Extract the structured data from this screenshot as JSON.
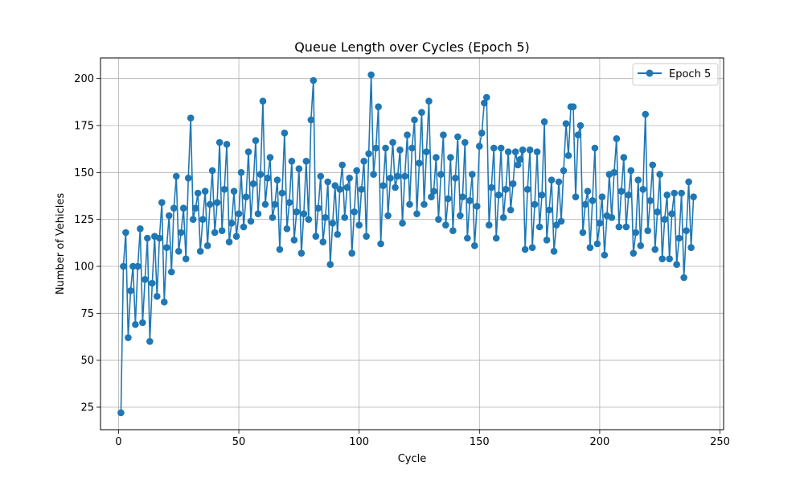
{
  "chart_data": {
    "type": "line",
    "title": "Queue Length over Cycles (Epoch 5)",
    "xlabel": "Cycle",
    "ylabel": "Number of Vehicles",
    "xlim": [
      -7.5,
      251.5
    ],
    "ylim": [
      13,
      211
    ],
    "xticks": [
      0,
      50,
      100,
      150,
      200,
      250
    ],
    "yticks": [
      25,
      50,
      75,
      100,
      125,
      150,
      175,
      200
    ],
    "grid": true,
    "legend_position": "top-right",
    "series": [
      {
        "name": "Epoch 5",
        "color": "#1f77b4",
        "marker": "circle",
        "x": [
          1,
          2,
          3,
          4,
          5,
          6,
          7,
          8,
          9,
          10,
          11,
          12,
          13,
          14,
          15,
          16,
          17,
          18,
          19,
          20,
          21,
          22,
          23,
          24,
          25,
          26,
          27,
          28,
          29,
          30,
          31,
          32,
          33,
          34,
          35,
          36,
          37,
          38,
          39,
          40,
          41,
          42,
          43,
          44,
          45,
          46,
          47,
          48,
          49,
          50,
          51,
          52,
          53,
          54,
          55,
          56,
          57,
          58,
          59,
          60,
          61,
          62,
          63,
          64,
          65,
          66,
          67,
          68,
          69,
          70,
          71,
          72,
          73,
          74,
          75,
          76,
          77,
          78,
          79,
          80,
          81,
          82,
          83,
          84,
          85,
          86,
          87,
          88,
          89,
          90,
          91,
          92,
          93,
          94,
          95,
          96,
          97,
          98,
          99,
          100,
          101,
          102,
          103,
          104,
          105,
          106,
          107,
          108,
          109,
          110,
          111,
          112,
          113,
          114,
          115,
          116,
          117,
          118,
          119,
          120,
          121,
          122,
          123,
          124,
          125,
          126,
          127,
          128,
          129,
          130,
          131,
          132,
          133,
          134,
          135,
          136,
          137,
          138,
          139,
          140,
          141,
          142,
          143,
          144,
          145,
          146,
          147,
          148,
          149,
          150,
          151,
          152,
          153,
          154,
          155,
          156,
          157,
          158,
          159,
          160,
          161,
          162,
          163,
          164,
          165,
          166,
          167,
          168,
          169,
          170,
          171,
          172,
          173,
          174,
          175,
          176,
          177,
          178,
          179,
          180,
          181,
          182,
          183,
          184,
          185,
          186,
          187,
          188,
          189,
          190,
          191,
          192,
          193,
          194,
          195,
          196,
          197,
          198,
          199,
          200,
          201,
          202,
          203,
          204,
          205,
          206,
          207,
          208,
          209,
          210,
          211,
          212,
          213,
          214,
          215,
          216,
          217,
          218,
          219,
          220,
          221,
          222,
          223,
          224,
          225,
          226,
          227,
          228,
          229,
          230,
          231,
          232,
          233,
          234,
          235,
          236,
          237,
          238,
          239
        ],
        "y": [
          22,
          100,
          118,
          62,
          87,
          100,
          69,
          100,
          120,
          70,
          93,
          115,
          60,
          91,
          116,
          84,
          115,
          134,
          81,
          110,
          127,
          97,
          131,
          148,
          108,
          118,
          131,
          104,
          147,
          179,
          125,
          131,
          139,
          108,
          125,
          140,
          111,
          133,
          151,
          118,
          134,
          166,
          119,
          141,
          165,
          113,
          123,
          140,
          116,
          128,
          150,
          121,
          137,
          161,
          124,
          144,
          167,
          128,
          149,
          188,
          133,
          147,
          158,
          126,
          133,
          146,
          109,
          139,
          171,
          120,
          134,
          156,
          114,
          129,
          152,
          107,
          128,
          156,
          125,
          178,
          199,
          116,
          131,
          148,
          113,
          126,
          145,
          101,
          123,
          143,
          117,
          141,
          154,
          126,
          142,
          147,
          107,
          129,
          151,
          122,
          141,
          156,
          116,
          160,
          202,
          149,
          163,
          185,
          112,
          143,
          163,
          127,
          147,
          166,
          142,
          148,
          162,
          123,
          148,
          170,
          133,
          163,
          178,
          128,
          155,
          182,
          133,
          161,
          188,
          137,
          140,
          158,
          125,
          149,
          170,
          122,
          136,
          158,
          119,
          147,
          169,
          127,
          137,
          166,
          115,
          135,
          149,
          111,
          132,
          164,
          171,
          187,
          190,
          122,
          142,
          163,
          115,
          138,
          163,
          126,
          141,
          161,
          130,
          144,
          161,
          154,
          157,
          162,
          109,
          141,
          162,
          110,
          133,
          161,
          121,
          138,
          177,
          114,
          130,
          146,
          108,
          122,
          145,
          124,
          151,
          176,
          159,
          185,
          185,
          137,
          170,
          175,
          118,
          133,
          140,
          110,
          135,
          163,
          112,
          123,
          137,
          106,
          127,
          149,
          126,
          150,
          168,
          121,
          140,
          158,
          121,
          138,
          151,
          107,
          118,
          146,
          111,
          141,
          181,
          119,
          135,
          154,
          109,
          129,
          149,
          104,
          125,
          138,
          104,
          128,
          139,
          101,
          115,
          139,
          94,
          119,
          145,
          110,
          137
        ]
      }
    ]
  }
}
